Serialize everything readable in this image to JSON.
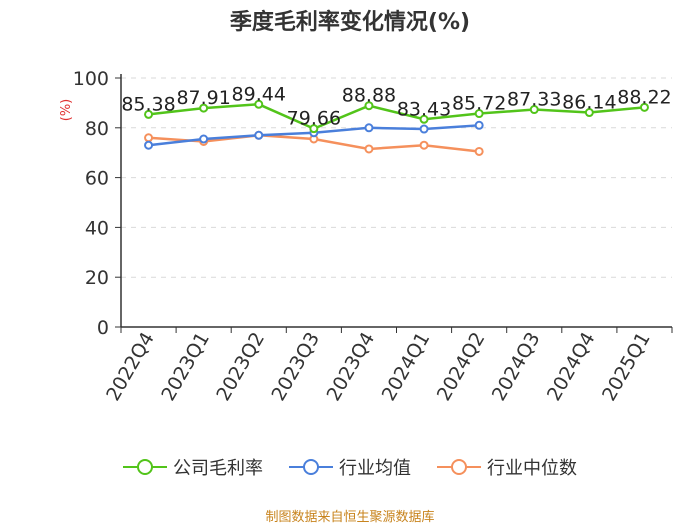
{
  "title": "季度毛利率变化情况(%)",
  "source": "制图数据来自恒生聚源数据库",
  "colors": {
    "company": "#52c41a",
    "industry_avg": "#4a7fdb",
    "industry_median": "#f5905c",
    "grid": "#d9d9d9",
    "axis": "#333333"
  },
  "chart_data": {
    "type": "line",
    "title": "季度毛利率变化情况(%)",
    "ylabel": "(%)",
    "ylim": [
      0,
      100
    ],
    "yticks": [
      "0",
      "20",
      "40",
      "60",
      "80",
      "100"
    ],
    "grid": true,
    "legend_position": "bottom",
    "categories": [
      "2022Q4",
      "2023Q1",
      "2023Q2",
      "2023Q3",
      "2023Q4",
      "2024Q1",
      "2024Q2",
      "2024Q3",
      "2024Q4",
      "2025Q1"
    ],
    "series": [
      {
        "name": "公司毛利率",
        "color": "#52c41a",
        "values": [
          85.38,
          87.91,
          89.44,
          79.66,
          88.88,
          83.43,
          85.72,
          87.33,
          86.14,
          88.22
        ],
        "labels": [
          "85.38",
          "87.91",
          "89.44",
          "79.66",
          "88.88",
          "83.43",
          "85.72",
          "87.33",
          "86.14",
          "88.22"
        ]
      },
      {
        "name": "行业均值",
        "color": "#4a7fdb",
        "values": [
          73,
          75.5,
          77,
          78,
          80,
          79.5,
          81,
          null,
          null,
          null
        ]
      },
      {
        "name": "行业中位数",
        "color": "#f5905c",
        "values": [
          76,
          74.5,
          77,
          75.5,
          71.5,
          73,
          70.5,
          null,
          null,
          null
        ]
      }
    ]
  }
}
